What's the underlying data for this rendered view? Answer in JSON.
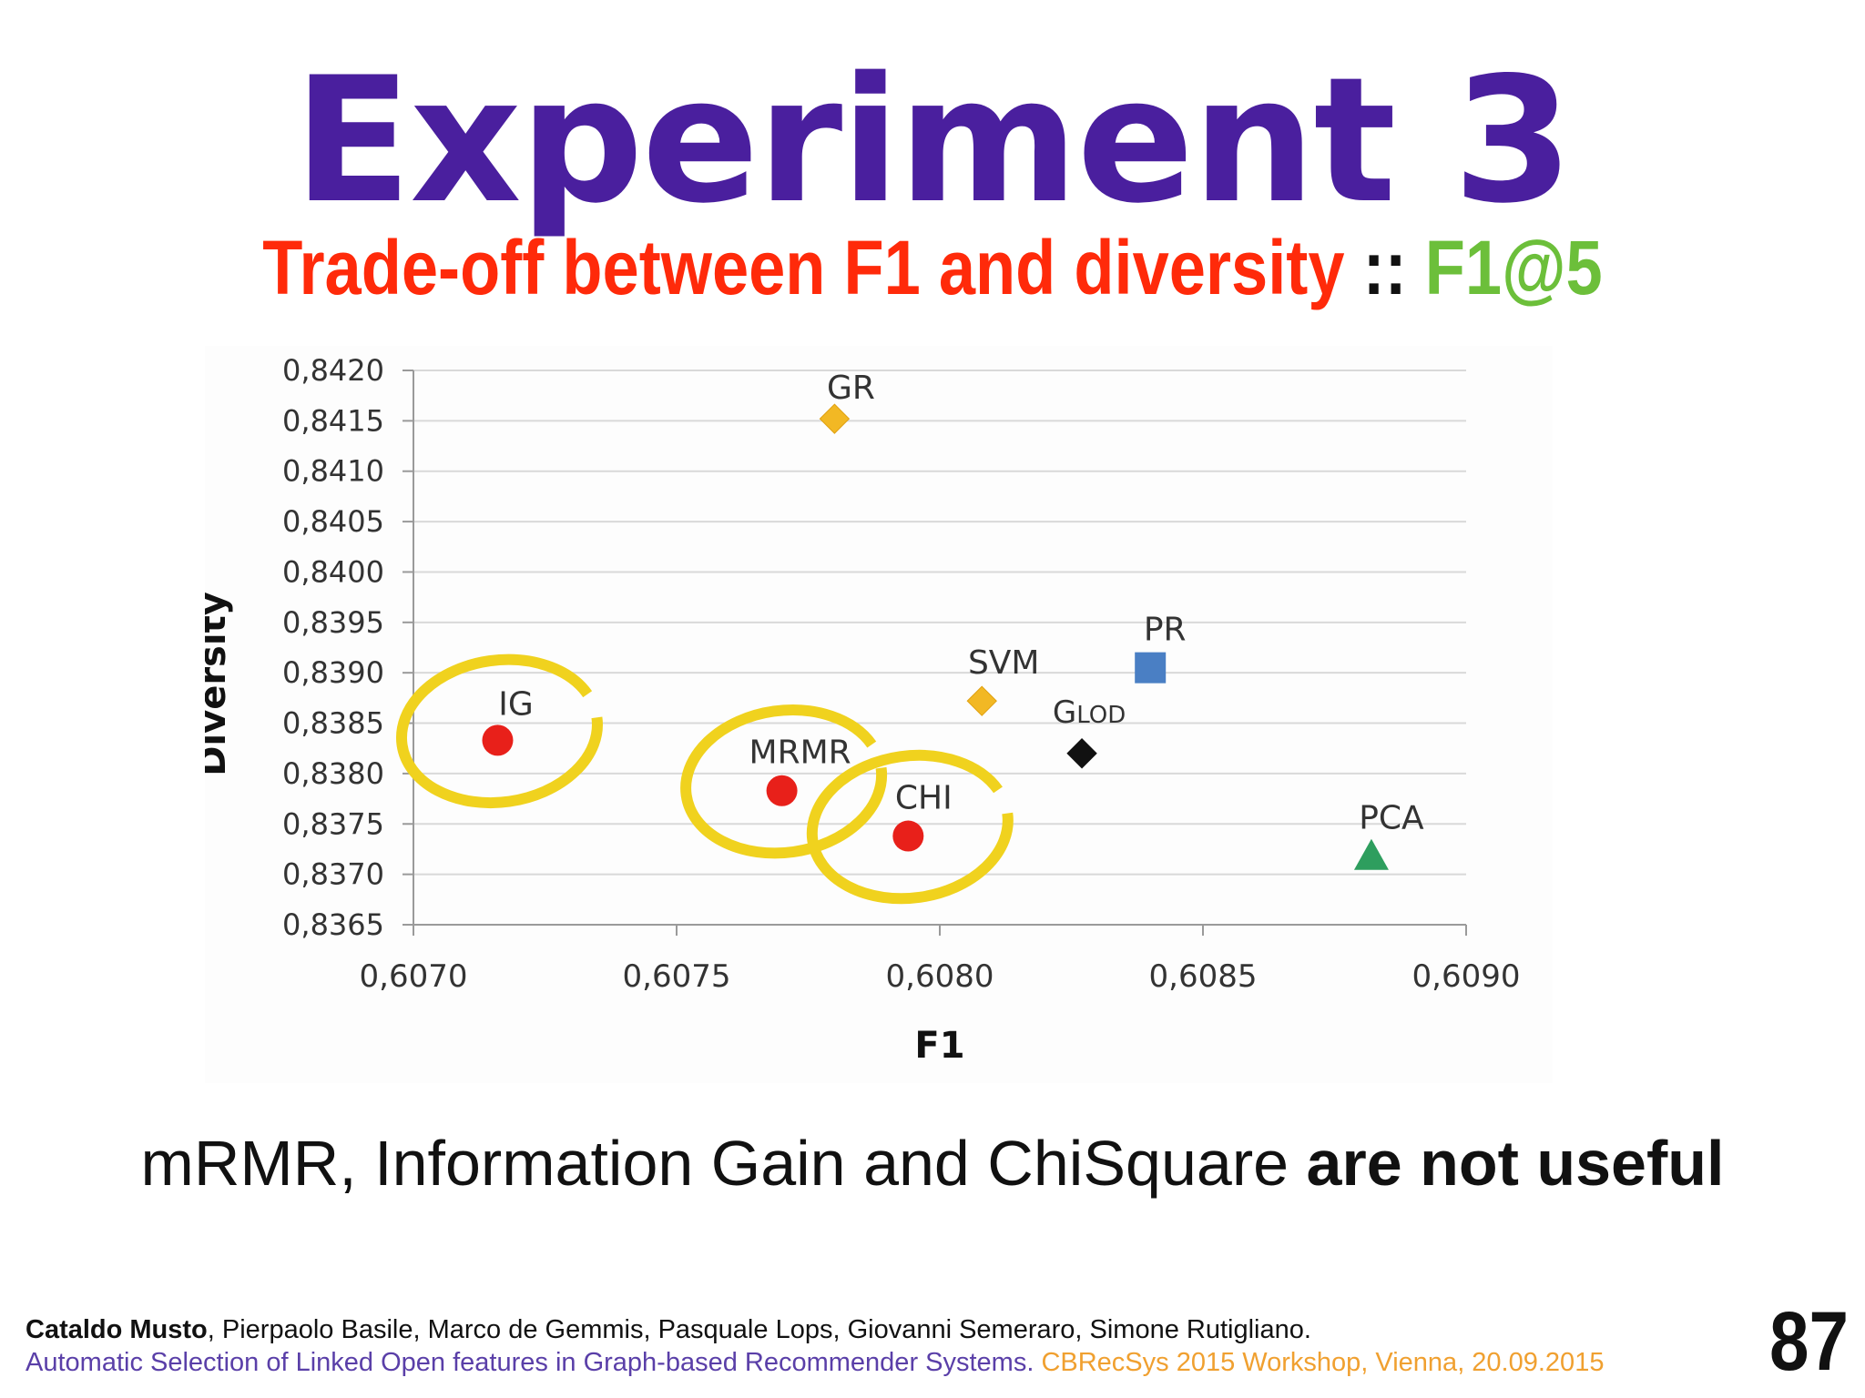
{
  "slide": {
    "title": "Experiment 3",
    "subtitle": {
      "main": "Trade-off between F1 and diversity",
      "separator": " :: ",
      "metric": "F1@5"
    },
    "statement": {
      "normal": "mRMR, Information Gain and ChiSquare ",
      "bold": "are not useful"
    },
    "footer": {
      "author_bold": "Cataldo Musto",
      "authors_rest": ", Pierpaolo Basile, Marco de Gemmis, Pasquale Lops, Giovanni Semeraro, Simone Rutigliano.",
      "paper_title": "Automatic Selection of Linked Open features in Graph-based Recommender Systems. ",
      "venue": "CBRecSys 2015 Workshop, Vienna, 20.09.2015"
    },
    "page_number": "87"
  },
  "chart_data": {
    "type": "scatter",
    "title": "",
    "xlabel": "F1",
    "ylabel": "Diversity",
    "xlim": [
      0.607,
      0.609
    ],
    "ylim": [
      0.8365,
      0.842
    ],
    "xticks": [
      0.607,
      0.6075,
      0.608,
      0.6085,
      0.609
    ],
    "yticks": [
      0.8365,
      0.837,
      0.8375,
      0.838,
      0.8385,
      0.839,
      0.8395,
      0.84,
      0.8405,
      0.841,
      0.8415,
      0.842
    ],
    "xtick_labels": [
      "0,6070",
      "0,6075",
      "0,6080",
      "0,6085",
      "0,6090"
    ],
    "ytick_labels": [
      "0,8365",
      "0,8370",
      "0,8375",
      "0,8380",
      "0,8385",
      "0,8390",
      "0,8395",
      "0,8400",
      "0,8405",
      "0,8410",
      "0,8415",
      "0,8420"
    ],
    "grid": "horizontal",
    "points": [
      {
        "label": "IG",
        "x": 0.60716,
        "y": 0.83833,
        "marker": "circle",
        "color": "#e8201a",
        "highlighted": true
      },
      {
        "label": "MRMR",
        "x": 0.6077,
        "y": 0.83783,
        "marker": "circle",
        "color": "#e8201a",
        "highlighted": true
      },
      {
        "label": "CHI",
        "x": 0.60794,
        "y": 0.83738,
        "marker": "circle",
        "color": "#e8201a",
        "highlighted": true
      },
      {
        "label": "GR",
        "x": 0.6078,
        "y": 0.84152,
        "marker": "diamond",
        "color": "#f2b824",
        "highlighted": false
      },
      {
        "label": "SVM",
        "x": 0.60808,
        "y": 0.83872,
        "marker": "diamond",
        "color": "#f2b824",
        "highlighted": false
      },
      {
        "label": "GLOD",
        "x": 0.60827,
        "y": 0.8382,
        "marker": "diamond",
        "color": "#111111",
        "highlighted": false
      },
      {
        "label": "PR",
        "x": 0.6084,
        "y": 0.83905,
        "marker": "square",
        "color": "#4a7fc4",
        "highlighted": false
      },
      {
        "label": "PCA",
        "x": 0.60882,
        "y": 0.83718,
        "marker": "triangle",
        "color": "#2e9e5e",
        "highlighted": false
      }
    ],
    "highlight_color": "#f0d21e"
  }
}
